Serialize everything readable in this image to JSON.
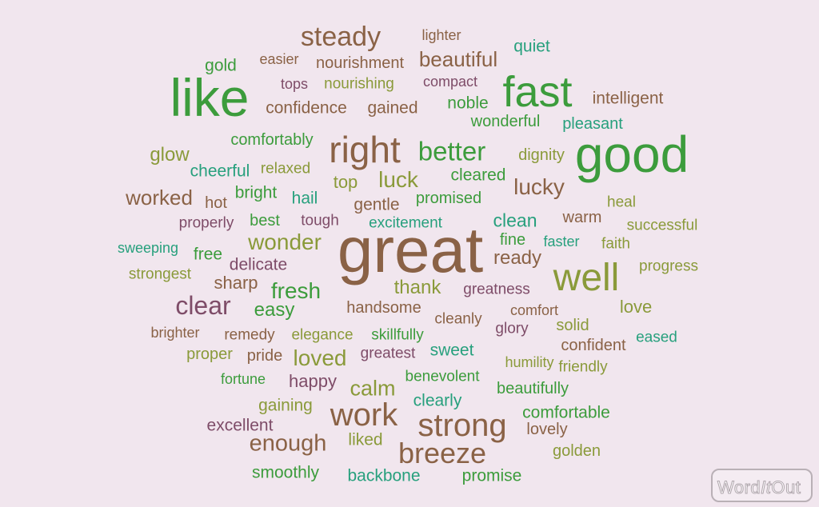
{
  "colors": {
    "background": "#f1e6ee",
    "brown": "#8a6246",
    "green": "#3c9c3c",
    "olive": "#8a9a3a",
    "teal": "#27a07d",
    "plum": "#7e4c68"
  },
  "logo": {
    "brand": "WordItOut"
  },
  "words": [
    {
      "text": "steady",
      "size": 34,
      "color": "brown"
    },
    {
      "text": "lighter",
      "size": 18,
      "color": "brown"
    },
    {
      "text": "quiet",
      "size": 21,
      "color": "teal"
    },
    {
      "text": "gold",
      "size": 21,
      "color": "green"
    },
    {
      "text": "easier",
      "size": 18,
      "color": "brown"
    },
    {
      "text": "nourishment",
      "size": 20,
      "color": "brown"
    },
    {
      "text": "beautiful",
      "size": 26,
      "color": "brown"
    },
    {
      "text": "like",
      "size": 66,
      "color": "green"
    },
    {
      "text": "tops",
      "size": 18,
      "color": "plum"
    },
    {
      "text": "nourishing",
      "size": 19,
      "color": "olive"
    },
    {
      "text": "compact",
      "size": 18,
      "color": "plum"
    },
    {
      "text": "fast",
      "size": 54,
      "color": "green"
    },
    {
      "text": "intelligent",
      "size": 21,
      "color": "brown"
    },
    {
      "text": "confidence",
      "size": 21,
      "color": "brown"
    },
    {
      "text": "gained",
      "size": 21,
      "color": "brown"
    },
    {
      "text": "noble",
      "size": 21,
      "color": "green"
    },
    {
      "text": "wonderful",
      "size": 20,
      "color": "green"
    },
    {
      "text": "pleasant",
      "size": 20,
      "color": "teal"
    },
    {
      "text": "comfortably",
      "size": 20,
      "color": "green"
    },
    {
      "text": "right",
      "size": 46,
      "color": "brown"
    },
    {
      "text": "better",
      "size": 33,
      "color": "green"
    },
    {
      "text": "good",
      "size": 64,
      "color": "green"
    },
    {
      "text": "glow",
      "size": 24,
      "color": "olive"
    },
    {
      "text": "dignity",
      "size": 20,
      "color": "olive"
    },
    {
      "text": "cheerful",
      "size": 21,
      "color": "teal"
    },
    {
      "text": "relaxed",
      "size": 19,
      "color": "olive"
    },
    {
      "text": "top",
      "size": 22,
      "color": "olive"
    },
    {
      "text": "luck",
      "size": 28,
      "color": "olive"
    },
    {
      "text": "cleared",
      "size": 21,
      "color": "green"
    },
    {
      "text": "lucky",
      "size": 28,
      "color": "brown"
    },
    {
      "text": "worked",
      "size": 26,
      "color": "brown"
    },
    {
      "text": "hot",
      "size": 20,
      "color": "brown"
    },
    {
      "text": "bright",
      "size": 21,
      "color": "green"
    },
    {
      "text": "hail",
      "size": 21,
      "color": "teal"
    },
    {
      "text": "gentle",
      "size": 21,
      "color": "brown"
    },
    {
      "text": "promised",
      "size": 20,
      "color": "green"
    },
    {
      "text": "heal",
      "size": 19,
      "color": "olive"
    },
    {
      "text": "properly",
      "size": 19,
      "color": "plum"
    },
    {
      "text": "best",
      "size": 20,
      "color": "green"
    },
    {
      "text": "tough",
      "size": 19,
      "color": "plum"
    },
    {
      "text": "excitement",
      "size": 19,
      "color": "teal"
    },
    {
      "text": "clean",
      "size": 23,
      "color": "teal"
    },
    {
      "text": "warm",
      "size": 20,
      "color": "brown"
    },
    {
      "text": "successful",
      "size": 19,
      "color": "olive"
    },
    {
      "text": "wonder",
      "size": 28,
      "color": "olive"
    },
    {
      "text": "great",
      "size": 80,
      "color": "brown"
    },
    {
      "text": "fine",
      "size": 20,
      "color": "green"
    },
    {
      "text": "faster",
      "size": 18,
      "color": "teal"
    },
    {
      "text": "faith",
      "size": 19,
      "color": "olive"
    },
    {
      "text": "sweeping",
      "size": 18,
      "color": "teal"
    },
    {
      "text": "free",
      "size": 21,
      "color": "green"
    },
    {
      "text": "delicate",
      "size": 21,
      "color": "plum"
    },
    {
      "text": "ready",
      "size": 24,
      "color": "brown"
    },
    {
      "text": "well",
      "size": 48,
      "color": "olive"
    },
    {
      "text": "progress",
      "size": 19,
      "color": "olive"
    },
    {
      "text": "strongest",
      "size": 19,
      "color": "olive"
    },
    {
      "text": "sharp",
      "size": 22,
      "color": "brown"
    },
    {
      "text": "fresh",
      "size": 28,
      "color": "green"
    },
    {
      "text": "thank",
      "size": 24,
      "color": "olive"
    },
    {
      "text": "greatness",
      "size": 19,
      "color": "plum"
    },
    {
      "text": "clear",
      "size": 32,
      "color": "plum"
    },
    {
      "text": "easy",
      "size": 24,
      "color": "green"
    },
    {
      "text": "handsome",
      "size": 20,
      "color": "brown"
    },
    {
      "text": "cleanly",
      "size": 19,
      "color": "brown"
    },
    {
      "text": "comfort",
      "size": 18,
      "color": "brown"
    },
    {
      "text": "love",
      "size": 22,
      "color": "olive"
    },
    {
      "text": "solid",
      "size": 20,
      "color": "olive"
    },
    {
      "text": "glory",
      "size": 19,
      "color": "plum"
    },
    {
      "text": "brighter",
      "size": 18,
      "color": "brown"
    },
    {
      "text": "remedy",
      "size": 19,
      "color": "brown"
    },
    {
      "text": "elegance",
      "size": 19,
      "color": "olive"
    },
    {
      "text": "skillfully",
      "size": 19,
      "color": "green"
    },
    {
      "text": "eased",
      "size": 19,
      "color": "teal"
    },
    {
      "text": "confident",
      "size": 20,
      "color": "brown"
    },
    {
      "text": "proper",
      "size": 20,
      "color": "olive"
    },
    {
      "text": "pride",
      "size": 20,
      "color": "brown"
    },
    {
      "text": "loved",
      "size": 28,
      "color": "olive"
    },
    {
      "text": "greatest",
      "size": 19,
      "color": "plum"
    },
    {
      "text": "sweet",
      "size": 21,
      "color": "teal"
    },
    {
      "text": "humility",
      "size": 18,
      "color": "olive"
    },
    {
      "text": "friendly",
      "size": 19,
      "color": "olive"
    },
    {
      "text": "fortune",
      "size": 18,
      "color": "green"
    },
    {
      "text": "happy",
      "size": 22,
      "color": "plum"
    },
    {
      "text": "benevolent",
      "size": 19,
      "color": "green"
    },
    {
      "text": "calm",
      "size": 27,
      "color": "olive"
    },
    {
      "text": "beautifully",
      "size": 20,
      "color": "green"
    },
    {
      "text": "gaining",
      "size": 21,
      "color": "olive"
    },
    {
      "text": "clearly",
      "size": 21,
      "color": "teal"
    },
    {
      "text": "work",
      "size": 40,
      "color": "brown"
    },
    {
      "text": "strong",
      "size": 40,
      "color": "brown"
    },
    {
      "text": "comfortable",
      "size": 21,
      "color": "green"
    },
    {
      "text": "excellent",
      "size": 21,
      "color": "plum"
    },
    {
      "text": "lovely",
      "size": 20,
      "color": "brown"
    },
    {
      "text": "enough",
      "size": 29,
      "color": "brown"
    },
    {
      "text": "liked",
      "size": 21,
      "color": "olive"
    },
    {
      "text": "breeze",
      "size": 36,
      "color": "brown"
    },
    {
      "text": "golden",
      "size": 20,
      "color": "olive"
    },
    {
      "text": "smoothly",
      "size": 21,
      "color": "green"
    },
    {
      "text": "backbone",
      "size": 21,
      "color": "teal"
    },
    {
      "text": "promise",
      "size": 21,
      "color": "green"
    }
  ]
}
